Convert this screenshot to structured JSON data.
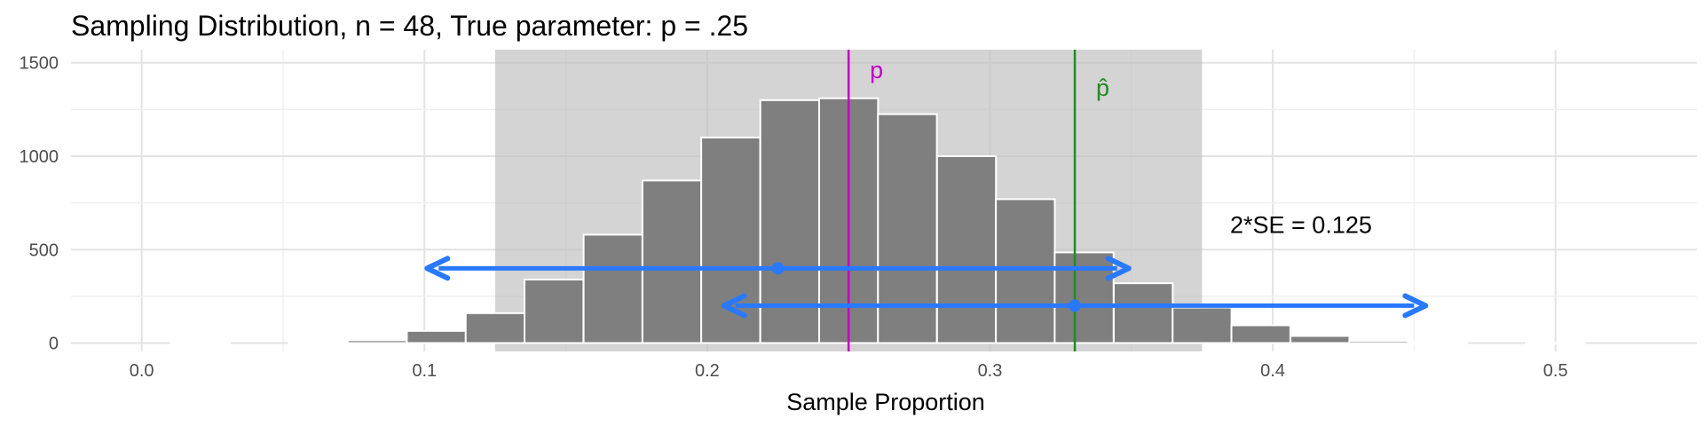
{
  "chart_data": {
    "type": "bar",
    "title": "Sampling Distribution, n = 48, True parameter: p = .25",
    "xlabel": "Sample Proportion",
    "ylabel": "",
    "xlim": [
      -0.025,
      0.55
    ],
    "ylim": [
      -45,
      1570
    ],
    "x_ticks": [
      0.0,
      0.1,
      0.2,
      0.3,
      0.4,
      0.5
    ],
    "x_tick_labels": [
      "0.0",
      "0.1",
      "0.2",
      "0.3",
      "0.4",
      "0.5"
    ],
    "y_ticks": [
      0,
      500,
      1000,
      1500
    ],
    "y_tick_labels": [
      "0",
      "500",
      "1000",
      "1500"
    ],
    "grid": true,
    "bin_width": 0.020833,
    "bins": [
      {
        "x": 0.0208,
        "count": 2
      },
      {
        "x": 0.0417,
        "count": 0
      },
      {
        "x": 0.0625,
        "count": 3
      },
      {
        "x": 0.0833,
        "count": 15
      },
      {
        "x": 0.1042,
        "count": 65
      },
      {
        "x": 0.125,
        "count": 160
      },
      {
        "x": 0.1458,
        "count": 340
      },
      {
        "x": 0.1667,
        "count": 580
      },
      {
        "x": 0.1875,
        "count": 870
      },
      {
        "x": 0.2083,
        "count": 1100
      },
      {
        "x": 0.2292,
        "count": 1300
      },
      {
        "x": 0.25,
        "count": 1310
      },
      {
        "x": 0.2708,
        "count": 1225
      },
      {
        "x": 0.2917,
        "count": 1000
      },
      {
        "x": 0.3125,
        "count": 770
      },
      {
        "x": 0.3333,
        "count": 485
      },
      {
        "x": 0.3542,
        "count": 320
      },
      {
        "x": 0.375,
        "count": 190
      },
      {
        "x": 0.3958,
        "count": 95
      },
      {
        "x": 0.4167,
        "count": 38
      },
      {
        "x": 0.4375,
        "count": 12
      },
      {
        "x": 0.4583,
        "count": 2
      },
      {
        "x": 0.5,
        "count": 1
      }
    ],
    "shaded_region": {
      "x_start": 0.125,
      "x_end": 0.375,
      "color": "#bfbfbf"
    },
    "true_p": {
      "x": 0.25,
      "label": "p",
      "color": "#c000c0"
    },
    "p_hat": {
      "x": 0.33,
      "label": "p̂",
      "color": "#228b22"
    },
    "intervals": [
      {
        "center": 0.225,
        "low": 0.1,
        "high": 0.35,
        "y": 400
      },
      {
        "center": 0.33,
        "low": 0.205,
        "high": 0.455,
        "y": 200
      }
    ],
    "interval_color": "#2979ff",
    "annotation": {
      "text": "2*SE = 0.125",
      "x": 0.41,
      "y": 590
    },
    "bar_color": "#7f7f7f"
  }
}
